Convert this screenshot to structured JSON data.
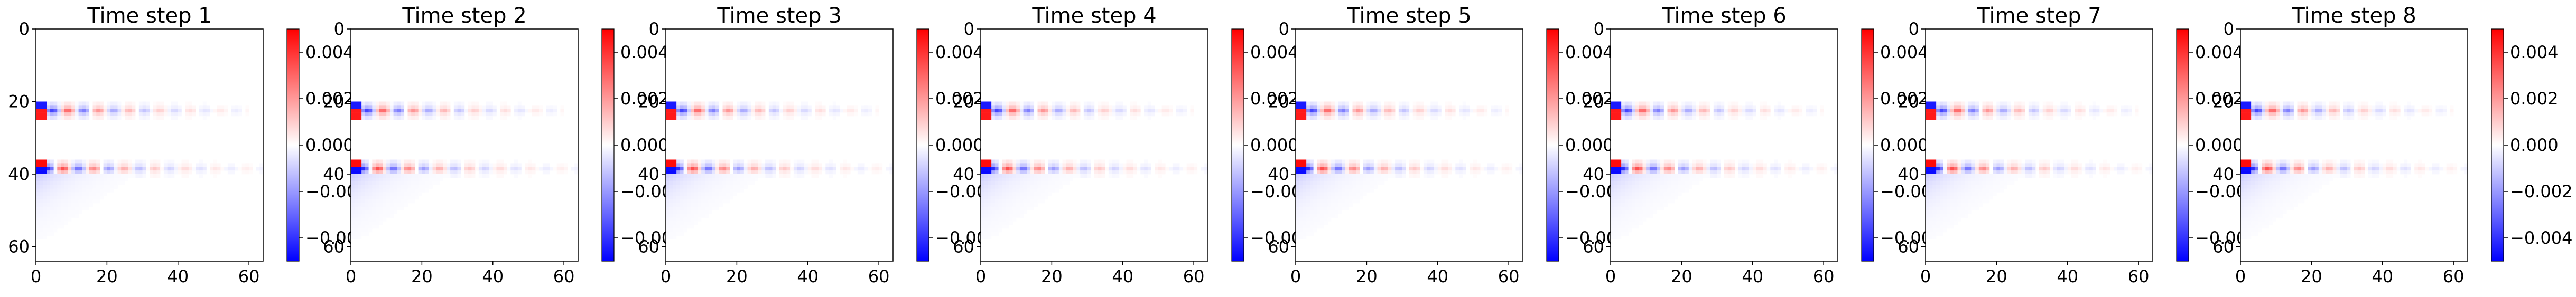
{
  "chart_data": [
    {
      "type": "heatmap",
      "title": "Time step 1",
      "xticks": [
        0,
        20,
        40,
        60
      ],
      "yticks": [
        0,
        20,
        40,
        60
      ],
      "xlim": [
        0,
        64
      ],
      "ylim": [
        64,
        0
      ],
      "colorbar": {
        "cmap": "bwr",
        "range": [
          -0.005,
          0.005
        ],
        "ticks": [
          0.004,
          0.002,
          0.0,
          -0.002,
          -0.004
        ],
        "tick_labels": [
          "0.004",
          "0.002",
          "0.000",
          "−0.002",
          "−0.004"
        ]
      }
    },
    {
      "type": "heatmap",
      "title": "Time step 2",
      "xticks": [
        0,
        20,
        40,
        60
      ],
      "yticks": [
        0,
        20,
        40,
        60
      ],
      "xlim": [
        0,
        64
      ],
      "ylim": [
        64,
        0
      ],
      "colorbar": {
        "cmap": "bwr",
        "range": [
          -0.005,
          0.005
        ],
        "ticks": [
          0.004,
          0.002,
          0.0,
          -0.002,
          -0.004
        ],
        "tick_labels": [
          "0.004",
          "0.002",
          "0.000",
          "−0.002",
          "−0.004"
        ]
      }
    },
    {
      "type": "heatmap",
      "title": "Time step 3",
      "xticks": [
        0,
        20,
        40,
        60
      ],
      "yticks": [
        0,
        20,
        40,
        60
      ],
      "xlim": [
        0,
        64
      ],
      "ylim": [
        64,
        0
      ],
      "colorbar": {
        "cmap": "bwr",
        "range": [
          -0.005,
          0.005
        ],
        "ticks": [
          0.004,
          0.002,
          0.0,
          -0.002,
          -0.004
        ],
        "tick_labels": [
          "0.004",
          "0.002",
          "0.000",
          "−0.002",
          "−0.004"
        ]
      }
    },
    {
      "type": "heatmap",
      "title": "Time step 4",
      "xticks": [
        0,
        20,
        40,
        60
      ],
      "yticks": [
        0,
        20,
        40,
        60
      ],
      "xlim": [
        0,
        64
      ],
      "ylim": [
        64,
        0
      ],
      "colorbar": {
        "cmap": "bwr",
        "range": [
          -0.005,
          0.005
        ],
        "ticks": [
          0.004,
          0.002,
          0.0,
          -0.002,
          -0.004
        ],
        "tick_labels": [
          "0.004",
          "0.002",
          "0.000",
          "−0.002",
          "−0.004"
        ]
      }
    },
    {
      "type": "heatmap",
      "title": "Time step 5",
      "xticks": [
        0,
        20,
        40,
        60
      ],
      "yticks": [
        0,
        20,
        40,
        60
      ],
      "xlim": [
        0,
        64
      ],
      "ylim": [
        64,
        0
      ],
      "colorbar": {
        "cmap": "bwr",
        "range": [
          -0.005,
          0.005
        ],
        "ticks": [
          0.004,
          0.002,
          0.0,
          -0.002,
          -0.004
        ],
        "tick_labels": [
          "0.004",
          "0.002",
          "0.000",
          "−0.002",
          "−0.004"
        ]
      }
    },
    {
      "type": "heatmap",
      "title": "Time step 6",
      "xticks": [
        0,
        20,
        40,
        60
      ],
      "yticks": [
        0,
        20,
        40,
        60
      ],
      "xlim": [
        0,
        64
      ],
      "ylim": [
        64,
        0
      ],
      "colorbar": {
        "cmap": "bwr",
        "range": [
          -0.005,
          0.005
        ],
        "ticks": [
          0.004,
          0.002,
          0.0,
          -0.002,
          -0.004
        ],
        "tick_labels": [
          "0.004",
          "0.002",
          "0.000",
          "−0.002",
          "−0.004"
        ]
      }
    },
    {
      "type": "heatmap",
      "title": "Time step 7",
      "xticks": [
        0,
        20,
        40,
        60
      ],
      "yticks": [
        0,
        20,
        40,
        60
      ],
      "xlim": [
        0,
        64
      ],
      "ylim": [
        64,
        0
      ],
      "colorbar": {
        "cmap": "bwr",
        "range": [
          -0.005,
          0.005
        ],
        "ticks": [
          0.004,
          0.002,
          0.0,
          -0.002,
          -0.004
        ],
        "tick_labels": [
          "0.004",
          "0.002",
          "0.000",
          "−0.002",
          "−0.004"
        ]
      }
    },
    {
      "type": "heatmap",
      "title": "Time step 8",
      "xticks": [
        0,
        20,
        40,
        60
      ],
      "yticks": [
        0,
        20,
        40,
        60
      ],
      "xlim": [
        0,
        64
      ],
      "ylim": [
        64,
        0
      ],
      "colorbar": {
        "cmap": "bwr",
        "range": [
          -0.005,
          0.005
        ],
        "ticks": [
          0.004,
          0.002,
          0.0,
          -0.002,
          -0.004
        ],
        "tick_labels": [
          "0.004",
          "0.002",
          "0.000",
          "−0.002",
          "−0.004"
        ]
      }
    }
  ],
  "field": {
    "streaks": [
      {
        "row": 22,
        "col_start": 0,
        "col_end": 60,
        "peak": 0.0045
      },
      {
        "row": 38,
        "col_start": 0,
        "col_end": 64,
        "peak": 0.0048
      }
    ]
  }
}
